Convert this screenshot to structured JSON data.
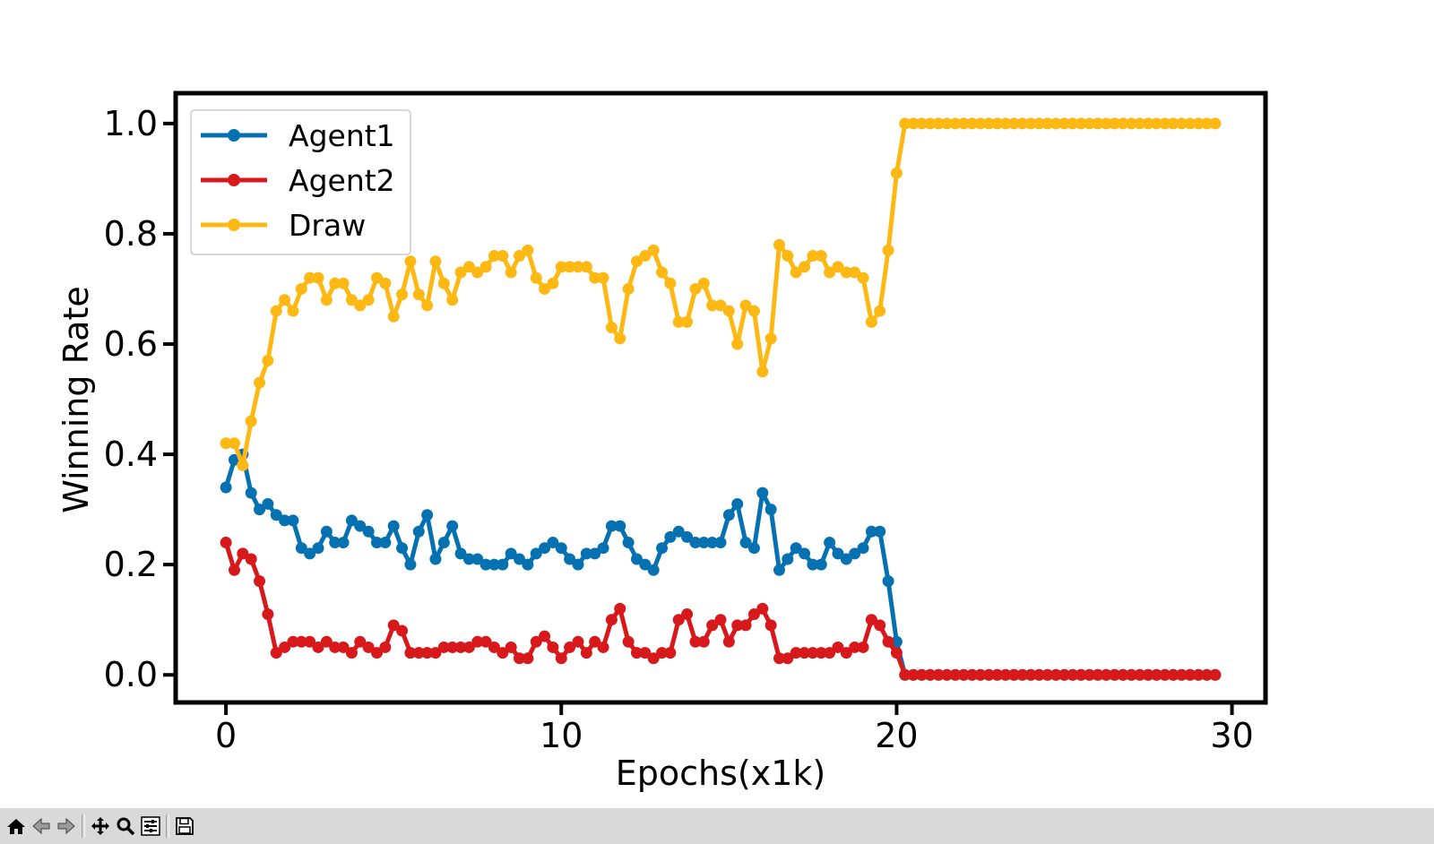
{
  "chart_data": {
    "type": "line",
    "title": "",
    "xlabel": "Epochs(x1k)",
    "ylabel": "Winning Rate",
    "xlim": [
      -1.5,
      31
    ],
    "ylim": [
      -0.05,
      1.055
    ],
    "xticks": [
      0,
      10,
      20,
      30
    ],
    "yticks": [
      0.0,
      0.2,
      0.4,
      0.6,
      0.8,
      1.0
    ],
    "xtick_labels": [
      "0",
      "10",
      "20",
      "30"
    ],
    "ytick_labels": [
      "0.0",
      "0.2",
      "0.4",
      "0.6",
      "0.8",
      "1.0"
    ],
    "grid": false,
    "legend_position": "top-left",
    "x_start": 0,
    "x_step": 0.25,
    "series": [
      {
        "name": "Agent1",
        "color": "#0571b0",
        "values": [
          0.34,
          0.39,
          0.4,
          0.33,
          0.3,
          0.31,
          0.29,
          0.28,
          0.28,
          0.23,
          0.22,
          0.23,
          0.26,
          0.24,
          0.24,
          0.28,
          0.27,
          0.26,
          0.24,
          0.24,
          0.27,
          0.23,
          0.2,
          0.26,
          0.29,
          0.21,
          0.24,
          0.27,
          0.22,
          0.21,
          0.21,
          0.2,
          0.2,
          0.2,
          0.22,
          0.21,
          0.2,
          0.22,
          0.23,
          0.24,
          0.23,
          0.21,
          0.2,
          0.22,
          0.22,
          0.23,
          0.27,
          0.27,
          0.24,
          0.21,
          0.2,
          0.19,
          0.23,
          0.25,
          0.26,
          0.25,
          0.24,
          0.24,
          0.24,
          0.24,
          0.29,
          0.31,
          0.24,
          0.23,
          0.33,
          0.3,
          0.19,
          0.21,
          0.23,
          0.22,
          0.2,
          0.2,
          0.24,
          0.22,
          0.21,
          0.22,
          0.23,
          0.26,
          0.26,
          0.17,
          0.06,
          0.0,
          0.0,
          0.0,
          0.0,
          0.0,
          0.0,
          0.0,
          0.0,
          0.0,
          0.0,
          0.0,
          0.0,
          0.0,
          0.0,
          0.0,
          0.0,
          0.0,
          0.0,
          0.0,
          0.0,
          0.0,
          0.0,
          0.0,
          0.0,
          0.0,
          0.0,
          0.0,
          0.0,
          0.0,
          0.0,
          0.0,
          0.0,
          0.0,
          0.0,
          0.0,
          0.0,
          0.0,
          0.0
        ]
      },
      {
        "name": "Agent2",
        "color": "#d7191c",
        "values": [
          0.24,
          0.19,
          0.22,
          0.21,
          0.17,
          0.11,
          0.04,
          0.05,
          0.06,
          0.06,
          0.06,
          0.05,
          0.06,
          0.05,
          0.05,
          0.04,
          0.06,
          0.05,
          0.04,
          0.05,
          0.09,
          0.08,
          0.04,
          0.04,
          0.04,
          0.04,
          0.05,
          0.05,
          0.05,
          0.05,
          0.06,
          0.06,
          0.05,
          0.04,
          0.05,
          0.03,
          0.03,
          0.06,
          0.07,
          0.05,
          0.03,
          0.05,
          0.06,
          0.04,
          0.06,
          0.05,
          0.1,
          0.12,
          0.06,
          0.04,
          0.04,
          0.03,
          0.04,
          0.04,
          0.1,
          0.11,
          0.06,
          0.06,
          0.09,
          0.1,
          0.06,
          0.09,
          0.09,
          0.11,
          0.12,
          0.09,
          0.03,
          0.03,
          0.04,
          0.04,
          0.04,
          0.04,
          0.04,
          0.05,
          0.04,
          0.05,
          0.05,
          0.1,
          0.09,
          0.06,
          0.04,
          0.0,
          0.0,
          0.0,
          0.0,
          0.0,
          0.0,
          0.0,
          0.0,
          0.0,
          0.0,
          0.0,
          0.0,
          0.0,
          0.0,
          0.0,
          0.0,
          0.0,
          0.0,
          0.0,
          0.0,
          0.0,
          0.0,
          0.0,
          0.0,
          0.0,
          0.0,
          0.0,
          0.0,
          0.0,
          0.0,
          0.0,
          0.0,
          0.0,
          0.0,
          0.0,
          0.0,
          0.0,
          0.0
        ]
      },
      {
        "name": "Draw",
        "color": "#fdb813",
        "values": [
          0.42,
          0.42,
          0.38,
          0.46,
          0.53,
          0.57,
          0.66,
          0.68,
          0.66,
          0.7,
          0.72,
          0.72,
          0.68,
          0.71,
          0.71,
          0.68,
          0.67,
          0.68,
          0.72,
          0.71,
          0.65,
          0.69,
          0.75,
          0.69,
          0.67,
          0.75,
          0.71,
          0.68,
          0.73,
          0.74,
          0.73,
          0.74,
          0.76,
          0.76,
          0.73,
          0.76,
          0.77,
          0.72,
          0.7,
          0.71,
          0.74,
          0.74,
          0.74,
          0.74,
          0.72,
          0.72,
          0.63,
          0.61,
          0.7,
          0.75,
          0.76,
          0.77,
          0.73,
          0.71,
          0.64,
          0.64,
          0.7,
          0.71,
          0.67,
          0.67,
          0.66,
          0.6,
          0.67,
          0.66,
          0.55,
          0.61,
          0.78,
          0.76,
          0.73,
          0.74,
          0.76,
          0.76,
          0.73,
          0.74,
          0.73,
          0.73,
          0.72,
          0.64,
          0.66,
          0.77,
          0.91,
          1.0,
          1.0,
          1.0,
          1.0,
          1.0,
          1.0,
          1.0,
          1.0,
          1.0,
          1.0,
          1.0,
          1.0,
          1.0,
          1.0,
          1.0,
          1.0,
          1.0,
          1.0,
          1.0,
          1.0,
          1.0,
          1.0,
          1.0,
          1.0,
          1.0,
          1.0,
          1.0,
          1.0,
          1.0,
          1.0,
          1.0,
          1.0,
          1.0,
          1.0,
          1.0,
          1.0,
          1.0,
          1.0
        ]
      }
    ]
  },
  "toolbar": {
    "buttons": [
      {
        "icon": "home-icon"
      },
      {
        "icon": "back-arrow-icon"
      },
      {
        "icon": "forward-arrow-icon"
      },
      {
        "icon": "pan-move-icon"
      },
      {
        "icon": "zoom-magnifier-icon"
      },
      {
        "icon": "configure-subplots-icon"
      },
      {
        "icon": "save-floppy-icon"
      }
    ],
    "background": "#d9d9d9"
  }
}
